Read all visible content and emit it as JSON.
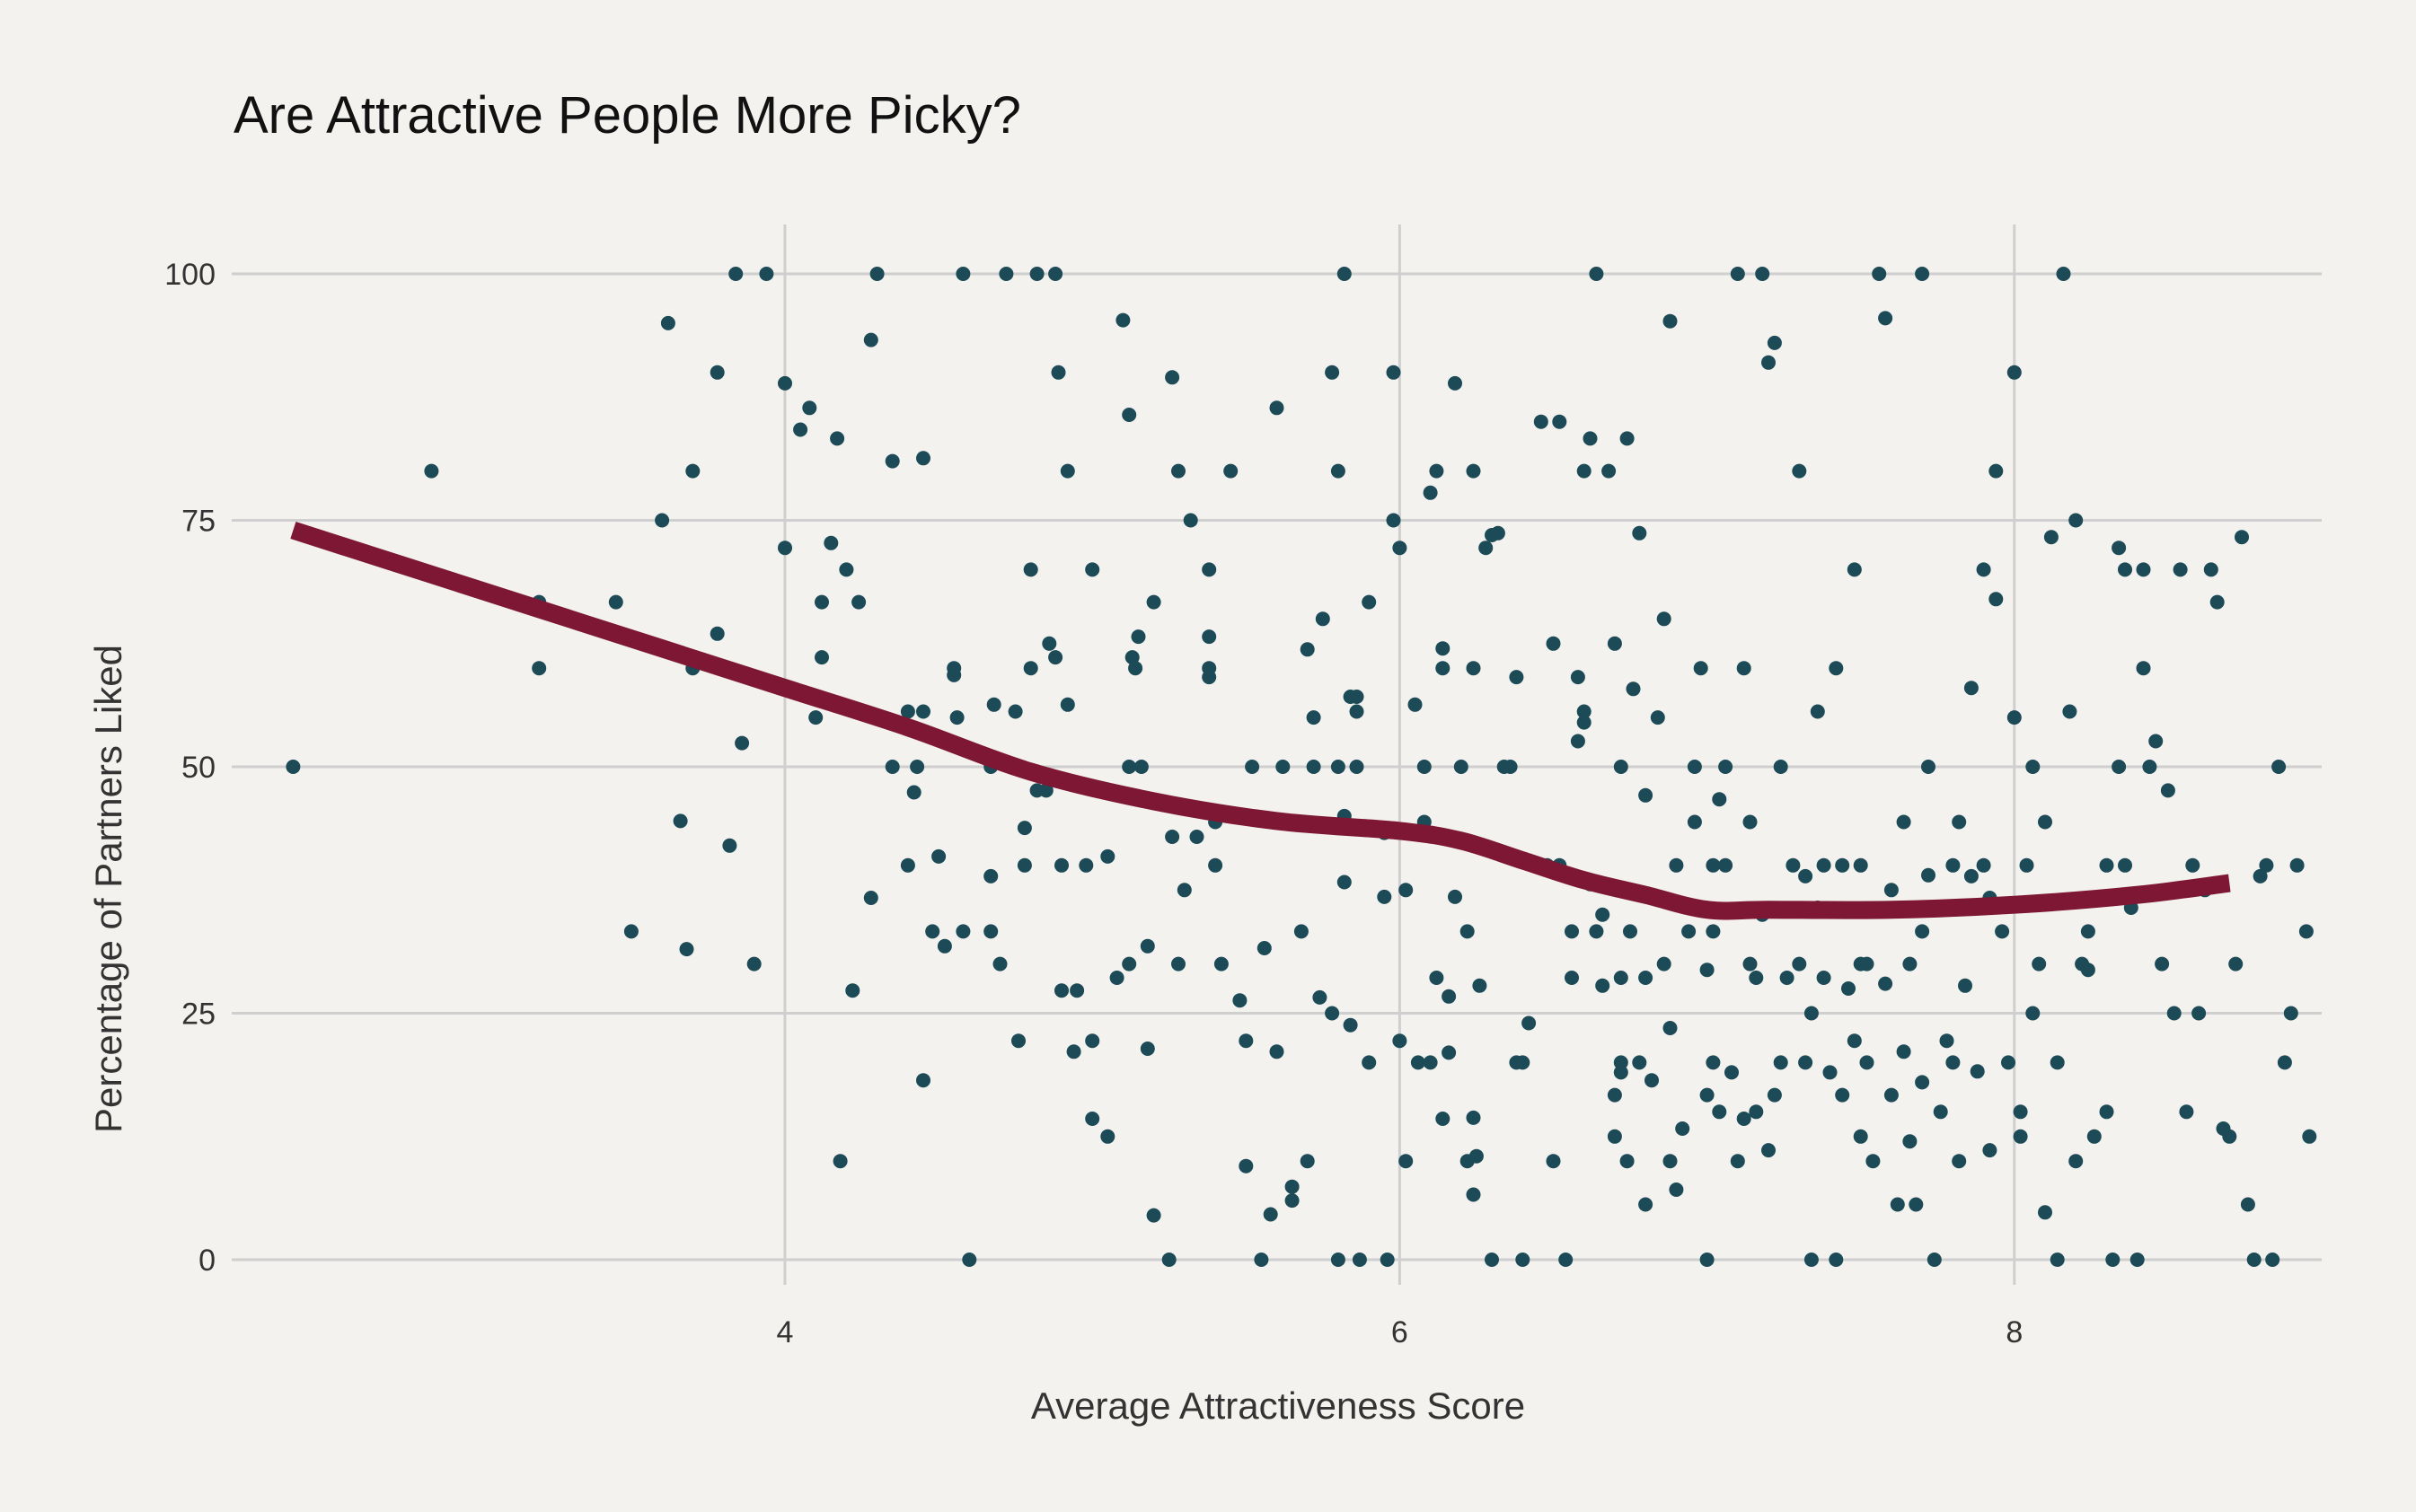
{
  "chart_data": {
    "type": "scatter",
    "title": "Are Attractive People More Picky?",
    "xlabel": "Average Attractiveness Score",
    "ylabel": "Percentage of Partners Liked",
    "xlim": [
      2.2,
      9.0
    ],
    "ylim": [
      0,
      100
    ],
    "x_ticks": [
      4,
      6,
      8
    ],
    "y_ticks": [
      0,
      25,
      50,
      75,
      100
    ],
    "grid": true,
    "colors": {
      "points": "#1c4a57",
      "trend": "#7d1733",
      "grid": "#cfcfcf",
      "background": "#f4f2ee"
    },
    "points": [
      [
        2.4,
        50
      ],
      [
        2.85,
        80
      ],
      [
        3.2,
        66.7
      ],
      [
        3.2,
        60
      ],
      [
        3.45,
        66.7
      ],
      [
        3.5,
        33.3
      ],
      [
        3.6,
        75
      ],
      [
        3.62,
        95
      ],
      [
        3.66,
        44.5
      ],
      [
        3.68,
        31.5
      ],
      [
        3.7,
        60
      ],
      [
        3.7,
        80
      ],
      [
        3.78,
        63.5
      ],
      [
        3.78,
        90
      ],
      [
        3.82,
        42
      ],
      [
        3.84,
        100
      ],
      [
        3.86,
        52.4
      ],
      [
        3.9,
        30
      ],
      [
        3.94,
        100
      ],
      [
        4.0,
        88.9
      ],
      [
        4.0,
        72.2
      ],
      [
        4.05,
        84.2
      ],
      [
        4.08,
        86.4
      ],
      [
        4.1,
        55
      ],
      [
        4.12,
        61.1
      ],
      [
        4.12,
        66.7
      ],
      [
        4.15,
        72.7
      ],
      [
        4.17,
        83.3
      ],
      [
        4.18,
        10
      ],
      [
        4.2,
        70
      ],
      [
        4.22,
        27.3
      ],
      [
        4.24,
        66.7
      ],
      [
        4.28,
        36.7
      ],
      [
        4.28,
        93.3
      ],
      [
        4.3,
        100
      ],
      [
        4.35,
        50
      ],
      [
        4.35,
        81
      ],
      [
        4.4,
        55.6
      ],
      [
        4.4,
        40
      ],
      [
        4.42,
        47.4
      ],
      [
        4.43,
        50
      ],
      [
        4.45,
        18.2
      ],
      [
        4.45,
        81.3
      ],
      [
        4.45,
        55.6
      ],
      [
        4.48,
        33.3
      ],
      [
        4.5,
        40.9
      ],
      [
        4.52,
        31.8
      ],
      [
        4.55,
        59.3
      ],
      [
        4.55,
        60
      ],
      [
        4.56,
        55
      ],
      [
        4.58,
        100
      ],
      [
        4.58,
        33.3
      ],
      [
        4.6,
        0
      ],
      [
        4.67,
        38.9
      ],
      [
        4.67,
        50
      ],
      [
        4.67,
        33.3
      ],
      [
        4.68,
        56.3
      ],
      [
        4.7,
        30
      ],
      [
        4.72,
        100
      ],
      [
        4.75,
        55.6
      ],
      [
        4.76,
        22.2
      ],
      [
        4.78,
        43.8
      ],
      [
        4.78,
        40
      ],
      [
        4.8,
        70
      ],
      [
        4.8,
        60
      ],
      [
        4.82,
        47.6
      ],
      [
        4.82,
        100
      ],
      [
        4.85,
        47.6
      ],
      [
        4.86,
        62.5
      ],
      [
        4.88,
        61.1
      ],
      [
        4.88,
        100
      ],
      [
        4.89,
        90
      ],
      [
        4.9,
        27.3
      ],
      [
        4.9,
        40
      ],
      [
        4.92,
        56.3
      ],
      [
        4.92,
        80
      ],
      [
        4.94,
        21.1
      ],
      [
        4.95,
        27.3
      ],
      [
        4.98,
        40
      ],
      [
        5.0,
        14.3
      ],
      [
        5.0,
        22.2
      ],
      [
        5.0,
        70
      ],
      [
        5.05,
        40.9
      ],
      [
        5.05,
        12.5
      ],
      [
        5.08,
        28.6
      ],
      [
        5.1,
        95.3
      ],
      [
        5.12,
        50
      ],
      [
        5.12,
        30
      ],
      [
        5.12,
        85.7
      ],
      [
        5.13,
        61.1
      ],
      [
        5.14,
        60
      ],
      [
        5.15,
        63.2
      ],
      [
        5.16,
        50
      ],
      [
        5.18,
        31.8
      ],
      [
        5.18,
        21.4
      ],
      [
        5.2,
        4.5
      ],
      [
        5.2,
        66.7
      ],
      [
        5.25,
        0
      ],
      [
        5.26,
        42.9
      ],
      [
        5.26,
        89.5
      ],
      [
        5.28,
        30
      ],
      [
        5.28,
        80
      ],
      [
        5.3,
        37.5
      ],
      [
        5.32,
        75
      ],
      [
        5.34,
        42.9
      ],
      [
        5.38,
        63.2
      ],
      [
        5.38,
        60
      ],
      [
        5.38,
        59.1
      ],
      [
        5.38,
        70
      ],
      [
        5.4,
        40
      ],
      [
        5.4,
        44.4
      ],
      [
        5.42,
        30
      ],
      [
        5.45,
        80
      ],
      [
        5.48,
        26.3
      ],
      [
        5.5,
        9.5
      ],
      [
        5.5,
        22.2
      ],
      [
        5.52,
        50
      ],
      [
        5.55,
        0
      ],
      [
        5.56,
        31.6
      ],
      [
        5.58,
        4.6
      ],
      [
        5.6,
        21.1
      ],
      [
        5.62,
        50
      ],
      [
        5.6,
        86.4
      ],
      [
        5.65,
        6
      ],
      [
        5.68,
        33.3
      ],
      [
        5.65,
        7.4
      ],
      [
        5.7,
        61.9
      ],
      [
        5.7,
        10
      ],
      [
        5.72,
        50
      ],
      [
        5.72,
        55
      ],
      [
        5.74,
        26.6
      ],
      [
        5.75,
        65
      ],
      [
        5.78,
        90
      ],
      [
        5.78,
        25
      ],
      [
        5.8,
        50
      ],
      [
        5.8,
        80
      ],
      [
        5.8,
        0
      ],
      [
        5.82,
        100
      ],
      [
        5.82,
        45
      ],
      [
        5.82,
        38.3
      ],
      [
        5.84,
        23.8
      ],
      [
        5.84,
        57.1
      ],
      [
        5.86,
        57.1
      ],
      [
        5.86,
        50
      ],
      [
        5.86,
        55.6
      ],
      [
        5.87,
        0
      ],
      [
        5.9,
        20
      ],
      [
        5.9,
        66.7
      ],
      [
        5.95,
        36.8
      ],
      [
        5.95,
        43.3
      ],
      [
        5.96,
        0
      ],
      [
        5.98,
        90
      ],
      [
        5.98,
        75
      ],
      [
        6.0,
        72.2
      ],
      [
        6.0,
        22.2
      ],
      [
        6.02,
        37.5
      ],
      [
        6.02,
        10
      ],
      [
        6.05,
        56.3
      ],
      [
        6.06,
        20
      ],
      [
        6.08,
        50
      ],
      [
        6.08,
        44.4
      ],
      [
        6.1,
        20
      ],
      [
        6.1,
        77.8
      ],
      [
        6.12,
        80
      ],
      [
        6.12,
        28.6
      ],
      [
        6.14,
        62
      ],
      [
        6.14,
        14.3
      ],
      [
        6.14,
        60
      ],
      [
        6.16,
        26.7
      ],
      [
        6.16,
        21
      ],
      [
        6.16,
        42.9
      ],
      [
        6.18,
        36.8
      ],
      [
        6.18,
        88.9
      ],
      [
        6.2,
        50
      ],
      [
        6.22,
        10
      ],
      [
        6.22,
        33.3
      ],
      [
        6.24,
        60
      ],
      [
        6.24,
        6.6
      ],
      [
        6.24,
        80
      ],
      [
        6.24,
        14.4
      ],
      [
        6.25,
        10.5
      ],
      [
        6.26,
        27.8
      ],
      [
        6.28,
        72.2
      ],
      [
        6.3,
        73.5
      ],
      [
        6.3,
        0
      ],
      [
        6.32,
        73.7
      ],
      [
        6.34,
        50
      ],
      [
        6.36,
        50
      ],
      [
        6.38,
        59.1
      ],
      [
        6.38,
        20
      ],
      [
        6.4,
        20
      ],
      [
        6.4,
        0
      ],
      [
        6.42,
        24
      ],
      [
        6.46,
        85
      ],
      [
        6.48,
        40
      ],
      [
        6.5,
        10
      ],
      [
        6.5,
        62.5
      ],
      [
        6.52,
        40
      ],
      [
        6.52,
        85
      ],
      [
        6.54,
        0
      ],
      [
        6.56,
        33.3
      ],
      [
        6.56,
        28.6
      ],
      [
        6.58,
        52.6
      ],
      [
        6.58,
        59.1
      ],
      [
        6.6,
        54.5
      ],
      [
        6.6,
        55.6
      ],
      [
        6.6,
        80
      ],
      [
        6.62,
        83.3
      ],
      [
        6.62,
        38.1
      ],
      [
        6.64,
        100
      ],
      [
        6.64,
        33.3
      ],
      [
        6.66,
        27.8
      ],
      [
        6.66,
        35
      ],
      [
        6.68,
        80
      ],
      [
        6.7,
        12.5
      ],
      [
        6.7,
        62.5
      ],
      [
        6.7,
        16.7
      ],
      [
        6.72,
        20
      ],
      [
        6.72,
        19
      ],
      [
        6.72,
        28.6
      ],
      [
        6.72,
        50
      ],
      [
        6.74,
        83.3
      ],
      [
        6.74,
        10
      ],
      [
        6.75,
        33.3
      ],
      [
        6.76,
        57.9
      ],
      [
        6.78,
        73.7
      ],
      [
        6.78,
        20
      ],
      [
        6.8,
        47.1
      ],
      [
        6.8,
        5.6
      ],
      [
        6.8,
        28.6
      ],
      [
        6.82,
        18.2
      ],
      [
        6.84,
        55
      ],
      [
        6.84,
        36.8
      ],
      [
        6.86,
        65
      ],
      [
        6.86,
        30
      ],
      [
        6.88,
        10
      ],
      [
        6.88,
        23.5
      ],
      [
        6.88,
        95.2
      ],
      [
        6.9,
        40
      ],
      [
        6.9,
        7.1
      ],
      [
        6.92,
        13.3
      ],
      [
        6.94,
        33.3
      ],
      [
        6.96,
        50
      ],
      [
        6.96,
        44.4
      ],
      [
        6.98,
        60
      ],
      [
        7.0,
        29.4
      ],
      [
        7.0,
        16.7
      ],
      [
        7.0,
        0
      ],
      [
        7.02,
        40
      ],
      [
        7.02,
        33.3
      ],
      [
        7.02,
        20
      ],
      [
        7.04,
        15
      ],
      [
        7.04,
        46.7
      ],
      [
        7.06,
        50
      ],
      [
        7.06,
        40
      ],
      [
        7.08,
        19
      ],
      [
        7.1,
        100
      ],
      [
        7.1,
        10
      ],
      [
        7.12,
        60
      ],
      [
        7.12,
        14.3
      ],
      [
        7.14,
        44.4
      ],
      [
        7.14,
        30
      ],
      [
        7.16,
        28.6
      ],
      [
        7.16,
        15
      ],
      [
        7.18,
        35
      ],
      [
        7.18,
        100
      ],
      [
        7.2,
        91
      ],
      [
        7.2,
        11.1
      ],
      [
        7.22,
        93
      ],
      [
        7.22,
        16.7
      ],
      [
        7.24,
        50
      ],
      [
        7.24,
        20
      ],
      [
        7.26,
        28.6
      ],
      [
        7.28,
        40
      ],
      [
        7.3,
        80
      ],
      [
        7.3,
        30
      ],
      [
        7.32,
        38.9
      ],
      [
        7.32,
        20
      ],
      [
        7.34,
        0
      ],
      [
        7.34,
        25
      ],
      [
        7.36,
        35.7
      ],
      [
        7.36,
        55.6
      ],
      [
        7.38,
        40
      ],
      [
        7.38,
        28.6
      ],
      [
        7.4,
        19
      ],
      [
        7.42,
        60
      ],
      [
        7.42,
        0
      ],
      [
        7.44,
        40
      ],
      [
        7.44,
        16.7
      ],
      [
        7.46,
        27.5
      ],
      [
        7.48,
        70
      ],
      [
        7.48,
        22.2
      ],
      [
        7.5,
        40
      ],
      [
        7.5,
        30
      ],
      [
        7.5,
        12.5
      ],
      [
        7.52,
        30
      ],
      [
        7.52,
        20
      ],
      [
        7.54,
        10
      ],
      [
        7.56,
        100
      ],
      [
        7.58,
        95.5
      ],
      [
        7.58,
        28
      ],
      [
        7.6,
        16.7
      ],
      [
        7.6,
        37.5
      ],
      [
        7.62,
        5.6
      ],
      [
        7.64,
        21.1
      ],
      [
        7.64,
        44.4
      ],
      [
        7.66,
        12
      ],
      [
        7.66,
        30
      ],
      [
        7.68,
        5.6
      ],
      [
        7.7,
        18
      ],
      [
        7.7,
        33.3
      ],
      [
        7.7,
        100
      ],
      [
        7.72,
        50
      ],
      [
        7.72,
        39
      ],
      [
        7.74,
        0
      ],
      [
        7.76,
        15
      ],
      [
        7.78,
        22.2
      ],
      [
        7.8,
        20
      ],
      [
        7.8,
        40
      ],
      [
        7.82,
        44.4
      ],
      [
        7.82,
        10
      ],
      [
        7.84,
        27.8
      ],
      [
        7.86,
        38.9
      ],
      [
        7.86,
        58
      ],
      [
        7.88,
        19.1
      ],
      [
        7.9,
        40
      ],
      [
        7.9,
        70
      ],
      [
        7.92,
        36.7
      ],
      [
        7.92,
        11.1
      ],
      [
        7.94,
        67
      ],
      [
        7.94,
        80
      ],
      [
        7.96,
        33.3
      ],
      [
        7.98,
        20
      ],
      [
        8.0,
        90
      ],
      [
        8.0,
        55
      ],
      [
        8.02,
        12.5
      ],
      [
        8.02,
        15
      ],
      [
        8.04,
        40
      ],
      [
        8.06,
        50
      ],
      [
        8.06,
        25
      ],
      [
        8.08,
        30
      ],
      [
        8.1,
        44.4
      ],
      [
        8.1,
        4.8
      ],
      [
        8.12,
        73.3
      ],
      [
        8.14,
        20
      ],
      [
        8.14,
        0
      ],
      [
        8.16,
        100
      ],
      [
        8.18,
        55.6
      ],
      [
        8.2,
        10
      ],
      [
        8.2,
        75
      ],
      [
        8.22,
        30
      ],
      [
        8.24,
        29.4
      ],
      [
        8.24,
        33.3
      ],
      [
        8.26,
        12.5
      ],
      [
        8.3,
        40
      ],
      [
        8.3,
        15
      ],
      [
        8.32,
        0
      ],
      [
        8.34,
        50
      ],
      [
        8.34,
        72.2
      ],
      [
        8.36,
        40
      ],
      [
        8.36,
        70
      ],
      [
        8.38,
        35.7
      ],
      [
        8.4,
        0
      ],
      [
        8.42,
        70
      ],
      [
        8.42,
        60
      ],
      [
        8.44,
        50
      ],
      [
        8.46,
        52.6
      ],
      [
        8.48,
        30
      ],
      [
        8.5,
        47.6
      ],
      [
        8.52,
        25
      ],
      [
        8.54,
        70
      ],
      [
        8.56,
        15
      ],
      [
        8.58,
        40
      ],
      [
        8.6,
        25
      ],
      [
        8.62,
        37.5
      ],
      [
        8.64,
        70
      ],
      [
        8.66,
        66.7
      ],
      [
        8.68,
        13.3
      ],
      [
        8.7,
        12.5
      ],
      [
        8.72,
        30
      ],
      [
        8.74,
        73.3
      ],
      [
        8.76,
        5.6
      ],
      [
        8.78,
        0
      ],
      [
        8.8,
        38.9
      ],
      [
        8.82,
        40
      ],
      [
        8.84,
        0
      ],
      [
        8.86,
        50
      ],
      [
        8.88,
        20
      ],
      [
        8.9,
        25
      ],
      [
        8.92,
        40
      ],
      [
        8.95,
        33.3
      ],
      [
        8.96,
        12.5
      ]
    ],
    "trend": [
      [
        2.4,
        74
      ],
      [
        2.8,
        70
      ],
      [
        3.2,
        66
      ],
      [
        3.6,
        62
      ],
      [
        4.0,
        58
      ],
      [
        4.4,
        54
      ],
      [
        4.8,
        49.5
      ],
      [
        5.2,
        46.5
      ],
      [
        5.6,
        44.5
      ],
      [
        6.0,
        43.5
      ],
      [
        6.2,
        42.5
      ],
      [
        6.4,
        40.5
      ],
      [
        6.6,
        38.5
      ],
      [
        6.8,
        37
      ],
      [
        7.0,
        35.5
      ],
      [
        7.2,
        35.5
      ],
      [
        7.6,
        35.5
      ],
      [
        8.0,
        36
      ],
      [
        8.4,
        37
      ],
      [
        8.7,
        38.2
      ]
    ]
  }
}
